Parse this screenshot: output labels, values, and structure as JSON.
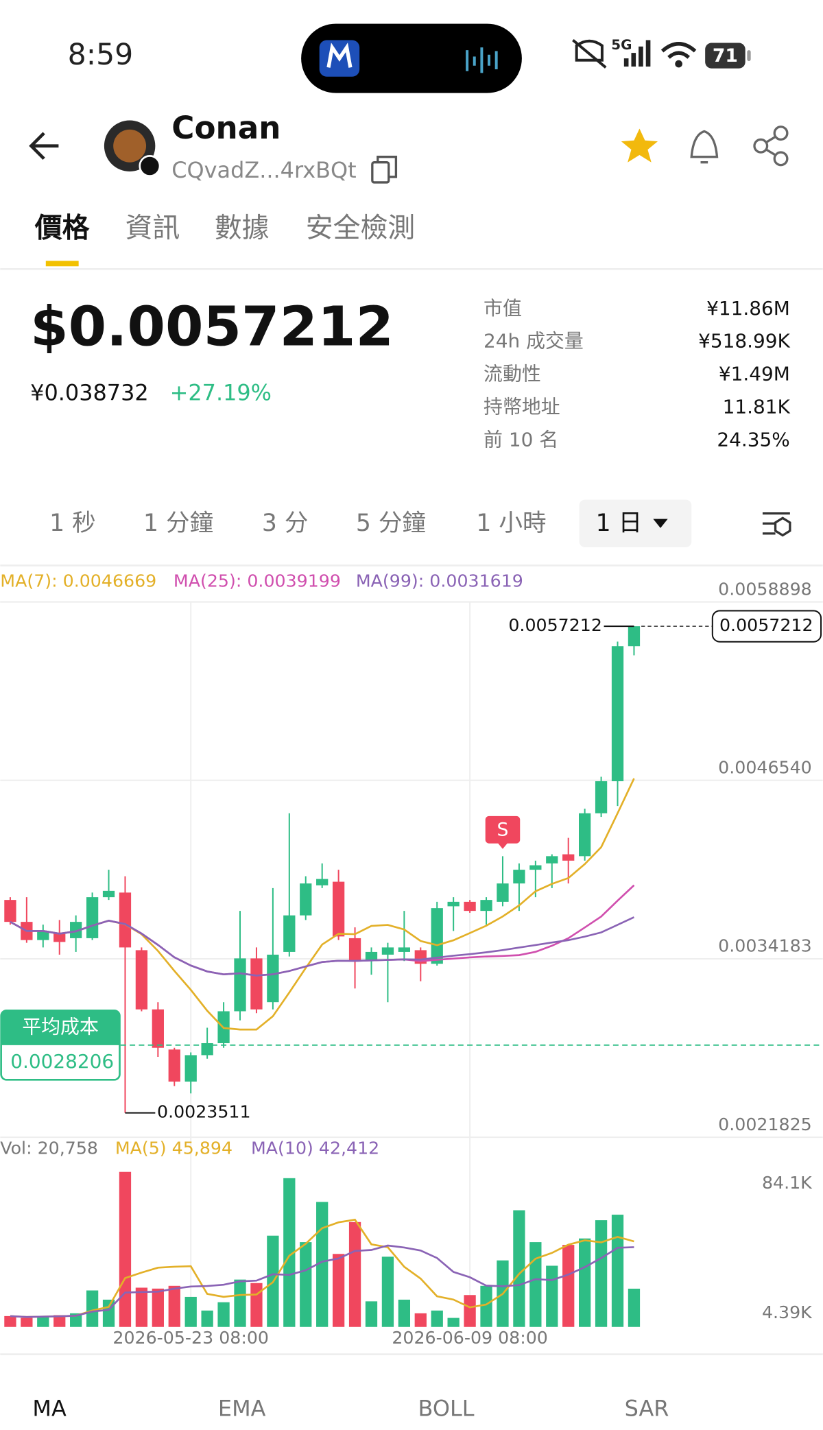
{
  "status_bar": {
    "time": "8:59",
    "network": "5G",
    "battery": "71"
  },
  "header": {
    "name": "Conan",
    "address": "CQvadZ...4rxBQt"
  },
  "tabs": [
    "價格",
    "資訊",
    "數據",
    "安全檢測"
  ],
  "price": {
    "usd": "$0.0057212",
    "cny": "¥0.038732",
    "change": "+27.19%"
  },
  "stats": [
    {
      "label": "市值",
      "value": "¥11.86M"
    },
    {
      "label": "24h 成交量",
      "value": "¥518.99K"
    },
    {
      "label": "流動性",
      "value": "¥1.49M"
    },
    {
      "label": "持幣地址",
      "value": "11.81K"
    },
    {
      "label": "前 10 名",
      "value": "24.35%"
    }
  ],
  "timeframes": [
    "1 秒",
    "1 分鐘",
    "3 分",
    "5 分鐘",
    "1 小時",
    "1 日"
  ],
  "indicator_tabs": [
    "MA",
    "EMA",
    "BOLL",
    "SAR"
  ],
  "chart_data": {
    "type": "candlestick",
    "ma_labels": [
      {
        "text": "MA(7): 0.0046669",
        "color": "#e3b028"
      },
      {
        "text": "MA(25): 0.0039199",
        "color": "#d04fae"
      },
      {
        "text": "MA(99): 0.0031619",
        "color": "#8a63b5"
      }
    ],
    "categories": [
      null,
      null,
      null,
      null,
      null,
      null,
      null,
      null,
      null,
      null,
      null,
      "2026-05-23 08:00",
      null,
      null,
      null,
      null,
      null,
      null,
      null,
      null,
      null,
      null,
      null,
      null,
      null,
      null,
      null,
      null,
      "2026-06-09 08:00",
      null,
      null,
      null,
      null,
      null,
      null,
      null,
      null,
      null,
      null
    ],
    "open": [
      0.003826,
      0.003674,
      0.003548,
      0.003598,
      0.003561,
      0.003561,
      0.003845,
      0.003877,
      0.003478,
      0.003068,
      0.00279,
      0.002568,
      0.002751,
      0.002834,
      0.003055,
      0.003421,
      0.003118,
      0.003466,
      0.003719,
      0.003927,
      0.003952,
      0.003561,
      0.003403,
      0.003447,
      0.003466,
      0.003478,
      0.003384,
      0.003782,
      0.003813,
      0.00375,
      0.003813,
      0.00394,
      0.004035,
      0.004079,
      0.004142,
      0.004129,
      0.004426,
      0.004648,
      0.005583
    ],
    "high": [
      0.003845,
      0.003845,
      0.003655,
      0.003687,
      0.003719,
      0.003877,
      0.004035,
      0.00399,
      0.003497,
      0.003118,
      0.002802,
      0.00277,
      0.002941,
      0.003118,
      0.00375,
      0.003497,
      0.003908,
      0.004426,
      0.00399,
      0.004079,
      0.004035,
      0.003636,
      0.003497,
      0.003529,
      0.00375,
      0.003497,
      0.003813,
      0.003845,
      0.003826,
      0.003845,
      0.004129,
      0.004079,
      0.004098,
      0.004142,
      0.004256,
      0.004458,
      0.004679,
      0.005615,
      0.0057212
    ],
    "low": [
      0.003655,
      0.003529,
      0.003497,
      0.003447,
      0.003466,
      0.003548,
      0.003826,
      0.0023511,
      0.003055,
      0.002739,
      0.002537,
      0.002486,
      0.002726,
      0.002802,
      0.002992,
      0.003042,
      0.003068,
      0.003434,
      0.003687,
      0.003908,
      0.003548,
      0.003213,
      0.003308,
      0.003118,
      0.003403,
      0.003263,
      0.003371,
      0.003611,
      0.003737,
      0.003655,
      0.003782,
      0.00375,
      0.003845,
      0.003908,
      0.00394,
      0.004098,
      0.004401,
      0.004477,
      0.00552
    ],
    "close": [
      0.003674,
      0.003548,
      0.003611,
      0.003535,
      0.003674,
      0.003845,
      0.003889,
      0.003497,
      0.003068,
      0.002802,
      0.002568,
      0.002751,
      0.002834,
      0.003055,
      0.003421,
      0.003068,
      0.003447,
      0.003719,
      0.00394,
      0.003971,
      0.003573,
      0.003403,
      0.003466,
      0.003497,
      0.003497,
      0.003384,
      0.003769,
      0.003813,
      0.00375,
      0.003826,
      0.00394,
      0.004035,
      0.004066,
      0.004129,
      0.004098,
      0.004426,
      0.004648,
      0.005583,
      0.0057212
    ],
    "ylim": [
      0.0021825,
      0.0058898
    ],
    "yticks": [
      0.0058898,
      {
        "value": 0.004654,
        "label": "0.0046540"
      },
      0.0034183,
      0.0021825
    ],
    "grid": true,
    "up_color": "#2ebd85",
    "down_color": "#f0475e",
    "avg_cost_label": "平均成本",
    "avg_cost": 0.0028206,
    "signal_label": "S",
    "volume": {
      "label": "Vol: 20,758",
      "ma_labels": [
        {
          "text": "MA(5) 45,894",
          "color": "#e3b028"
        },
        {
          "text": "MA(10) 42,412",
          "color": "#8a63b5"
        }
      ],
      "values": [
        5900,
        4900,
        5900,
        6400,
        7400,
        19800,
        14800,
        84100,
        21300,
        20800,
        22300,
        16300,
        8900,
        13400,
        25700,
        23800,
        49500,
        80700,
        46000,
        67800,
        39600,
        56900,
        13900,
        38100,
        14800,
        7400,
        8900,
        4900,
        17300,
        22300,
        36100,
        63300,
        46000,
        33200,
        44500,
        48000,
        57900,
        60900,
        20758
      ],
      "ylim": [
        0,
        84100
      ],
      "yticks": [
        {
          "value": 84100,
          "label": "84.1K"
        },
        {
          "value": 4390,
          "label": "4.39K"
        }
      ]
    }
  }
}
